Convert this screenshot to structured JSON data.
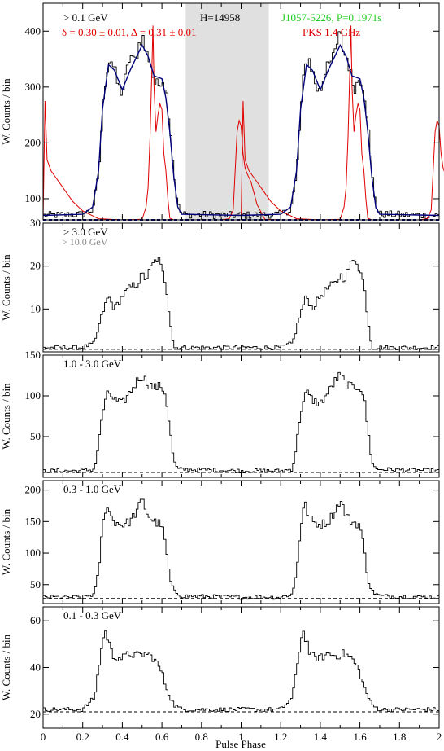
{
  "figure": {
    "xlabel": "Pulse Phase",
    "x_ticks": [
      "0",
      "0.2",
      "0.4",
      "0.6",
      "0.8",
      "1",
      "1.2",
      "1.4",
      "1.6",
      "1.8",
      "2"
    ]
  },
  "annotations": {
    "energy_label": "> 0.1 GeV",
    "fit_params": "δ = 0.30 ± 0.01, Δ = 0.31 ± 0.01",
    "htest": "H=14958",
    "pulsar": "J1057-5226, P=0.1971s",
    "radio": "PKS 1.4 GHz",
    "high_energy": "> 10.0 GeV"
  },
  "colors": {
    "gamma_histogram": "#000000",
    "radio_profile": "#e00000",
    "fit_model": "#00007a",
    "pulsar_label": "#22cc22",
    "high_energy_label": "#888888",
    "shaded_region": "#e0e0e0",
    "background_level": "#00007a"
  },
  "chart_data": [
    {
      "type": "line",
      "panel": "> 0.1 GeV",
      "title": "> 0.1 GeV",
      "xlabel": "",
      "ylabel": "W. Counts / bin",
      "xlim": [
        0,
        2
      ],
      "ylim": [
        62,
        450
      ],
      "y_ticks": [
        100,
        200,
        300,
        400
      ],
      "baseline": 62,
      "shaded_phase_range": [
        0.72,
        1.14
      ],
      "series": [
        {
          "name": "> 0.1 GeV",
          "phase": [
            0.0,
            0.2,
            0.25,
            0.28,
            0.3,
            0.32,
            0.34,
            0.36,
            0.38,
            0.4,
            0.42,
            0.44,
            0.46,
            0.48,
            0.5,
            0.52,
            0.54,
            0.56,
            0.58,
            0.6,
            0.62,
            0.64,
            0.66,
            0.68,
            0.7,
            1.0
          ],
          "counts": [
            70,
            72,
            80,
            140,
            250,
            330,
            355,
            330,
            300,
            290,
            320,
            360,
            340,
            370,
            395,
            360,
            350,
            310,
            300,
            320,
            300,
            240,
            150,
            90,
            72,
            70
          ]
        },
        {
          "name": "PKS 1.4 GHz",
          "phase": [
            0.0,
            0.01,
            0.02,
            0.04,
            0.06,
            0.1,
            0.15,
            0.2,
            0.28,
            0.4,
            0.5,
            0.52,
            0.53,
            0.54,
            0.55,
            0.555,
            0.56,
            0.57,
            0.58,
            0.59,
            0.6,
            0.61,
            0.62,
            0.63,
            0.64,
            0.66,
            0.7,
            0.8,
            0.9,
            0.94,
            0.96,
            0.97,
            0.98,
            0.99,
            1.0,
            1.01,
            1.02,
            1.03,
            1.05,
            1.08,
            1.12,
            1.2,
            1.3
          ],
          "counts": [
            62,
            275,
            170,
            150,
            140,
            120,
            95,
            78,
            64,
            62,
            63,
            85,
            120,
            210,
            340,
            410,
            300,
            220,
            250,
            270,
            260,
            180,
            150,
            100,
            65,
            62,
            62,
            62,
            62,
            64,
            80,
            150,
            220,
            240,
            230,
            180,
            155,
            145,
            130,
            90,
            63,
            62,
            62
          ]
        },
        {
          "name": "fit model",
          "phase": [
            0.0,
            0.2,
            0.25,
            0.28,
            0.3,
            0.33,
            0.36,
            0.4,
            0.44,
            0.48,
            0.5,
            0.53,
            0.56,
            0.6,
            0.62,
            0.64,
            0.66,
            0.68,
            0.7,
            1.0
          ],
          "counts": [
            70,
            72,
            85,
            150,
            260,
            340,
            330,
            295,
            330,
            360,
            375,
            355,
            320,
            315,
            280,
            220,
            140,
            85,
            72,
            70
          ]
        }
      ]
    },
    {
      "type": "line",
      "panel": "> 3.0 GeV",
      "title": "> 3.0 GeV",
      "xlabel": "",
      "ylabel": "W. Counts / bin",
      "xlim": [
        0,
        2
      ],
      "ylim": [
        0,
        30
      ],
      "y_ticks": [
        10,
        20,
        30
      ],
      "baseline": 0.6,
      "series": [
        {
          "name": "> 3.0 GeV",
          "phase": [
            0.0,
            0.2,
            0.26,
            0.3,
            0.33,
            0.36,
            0.4,
            0.44,
            0.48,
            0.5,
            0.52,
            0.55,
            0.58,
            0.6,
            0.62,
            0.64,
            0.66,
            1.0
          ],
          "counts": [
            1,
            1,
            2,
            9,
            13,
            10,
            13,
            15,
            16,
            18,
            17,
            20,
            22,
            19,
            16,
            8,
            1,
            1
          ]
        }
      ]
    },
    {
      "type": "line",
      "panel": "1.0 - 3.0 GeV",
      "title": "1.0 - 3.0 GeV",
      "xlabel": "",
      "ylabel": "W. Counts / bin",
      "xlim": [
        0,
        2
      ],
      "ylim": [
        0,
        150
      ],
      "y_ticks": [
        50,
        100,
        150
      ],
      "baseline": 6,
      "series": [
        {
          "name": "1.0 - 3.0 GeV",
          "phase": [
            0.0,
            0.2,
            0.26,
            0.28,
            0.3,
            0.33,
            0.36,
            0.4,
            0.44,
            0.48,
            0.5,
            0.53,
            0.56,
            0.6,
            0.62,
            0.64,
            0.66,
            0.68,
            1.0
          ],
          "counts": [
            8,
            8,
            10,
            40,
            80,
            105,
            95,
            90,
            105,
            120,
            125,
            115,
            110,
            112,
            100,
            60,
            20,
            10,
            8
          ]
        }
      ]
    },
    {
      "type": "line",
      "panel": "0.3 - 1.0 GeV",
      "title": "0.3 - 1.0 GeV",
      "xlabel": "",
      "ylabel": "W. Counts / bin",
      "xlim": [
        0,
        2
      ],
      "ylim": [
        20,
        215
      ],
      "y_ticks": [
        50,
        100,
        150,
        200
      ],
      "baseline": 28,
      "series": [
        {
          "name": "0.3 - 1.0 GeV",
          "phase": [
            0.0,
            0.2,
            0.26,
            0.28,
            0.3,
            0.32,
            0.34,
            0.36,
            0.4,
            0.44,
            0.48,
            0.5,
            0.53,
            0.56,
            0.6,
            0.62,
            0.64,
            0.66,
            0.7,
            1.0
          ],
          "counts": [
            30,
            30,
            35,
            70,
            140,
            180,
            160,
            150,
            145,
            150,
            170,
            185,
            160,
            150,
            145,
            110,
            60,
            40,
            32,
            30
          ]
        }
      ]
    },
    {
      "type": "line",
      "panel": "0.1 - 0.3 GeV",
      "title": "0.1 - 0.3 GeV",
      "xlabel": "Pulse Phase",
      "ylabel": "W. Counts / bin",
      "xlim": [
        0,
        2
      ],
      "ylim": [
        14,
        66
      ],
      "y_ticks": [
        20,
        40,
        60
      ],
      "baseline": 21,
      "series": [
        {
          "name": "0.1 - 0.3 GeV",
          "phase": [
            0.0,
            0.2,
            0.26,
            0.29,
            0.31,
            0.33,
            0.35,
            0.4,
            0.44,
            0.48,
            0.52,
            0.56,
            0.6,
            0.62,
            0.64,
            0.66,
            0.7,
            1.0
          ],
          "counts": [
            22,
            22,
            27,
            45,
            56,
            52,
            45,
            44,
            46,
            45,
            46,
            44,
            38,
            32,
            28,
            24,
            22,
            22
          ]
        }
      ]
    }
  ]
}
